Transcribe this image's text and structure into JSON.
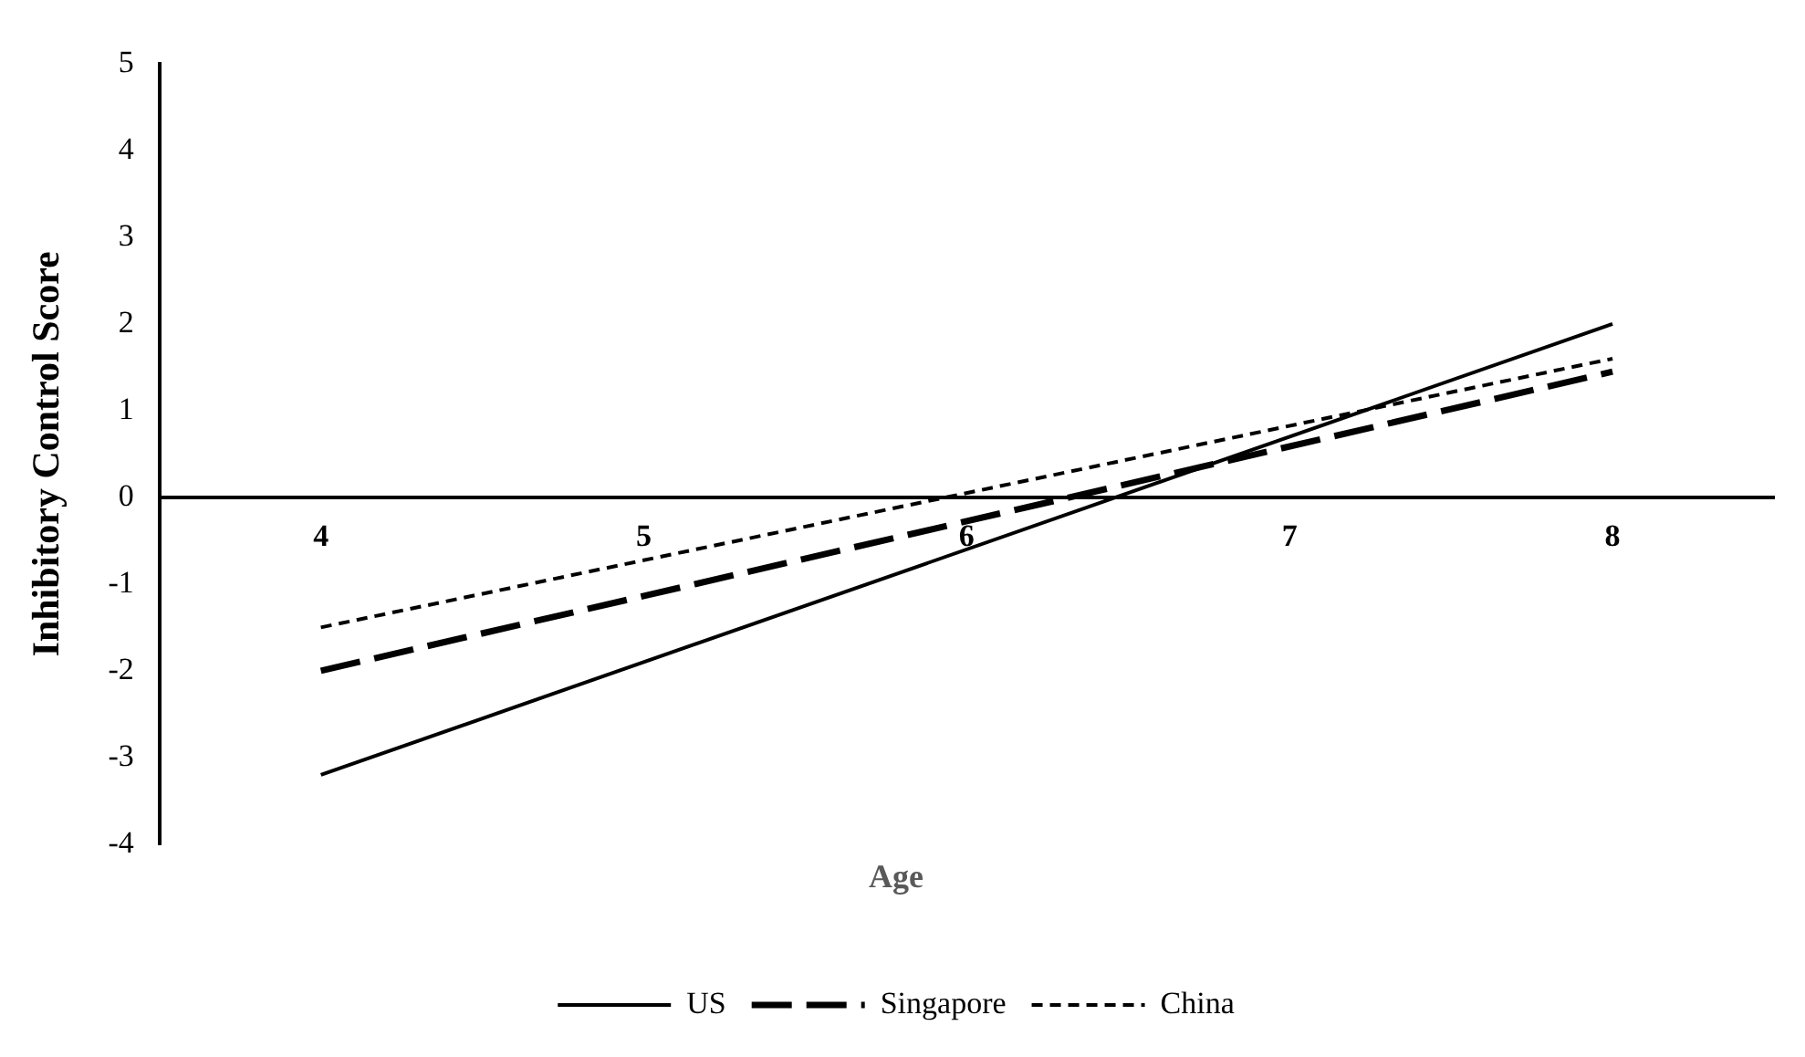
{
  "chart_data": {
    "type": "line",
    "xlabel": "Age",
    "ylabel": "Inhibitory Control Score",
    "x": [
      4,
      8
    ],
    "xlim": [
      3.5,
      8.5
    ],
    "xticks": [
      4,
      5,
      6,
      7,
      8
    ],
    "ylim": [
      -4,
      5
    ],
    "yticks": [
      -4,
      -3,
      -2,
      -1,
      0,
      1,
      2,
      3,
      4,
      5
    ],
    "series": [
      {
        "name": "US",
        "color": "#000000",
        "values": [
          -3.2,
          2.0
        ],
        "line_style": "solid"
      },
      {
        "name": "Singapore",
        "color": "#000000",
        "values": [
          -2.0,
          1.45
        ],
        "line_style": "dashed"
      },
      {
        "name": "China",
        "color": "#000000",
        "values": [
          -1.5,
          1.6
        ],
        "line_style": "dotted"
      }
    ],
    "grid": false,
    "legend": "bottom",
    "marker": "none"
  }
}
